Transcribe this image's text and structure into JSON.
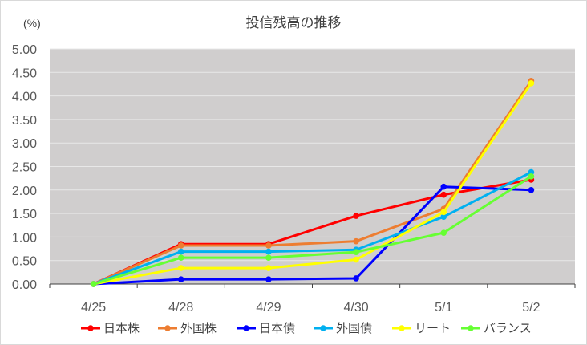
{
  "chart_data": {
    "type": "line",
    "title": "投信残高の推移",
    "ylabel": "(%)",
    "xlabel": "",
    "categories": [
      "4/25",
      "4/28",
      "4/29",
      "4/30",
      "5/1",
      "5/2"
    ],
    "ylim": [
      0,
      5
    ],
    "yticks": [
      "0.00",
      "0.50",
      "1.00",
      "1.50",
      "2.00",
      "2.50",
      "3.00",
      "3.50",
      "4.00",
      "4.50",
      "5.00"
    ],
    "grid": true,
    "legend_position": "bottom",
    "plot_background": "#d0cece",
    "series": [
      {
        "name": "日本株",
        "color": "#ff0000",
        "values": [
          0,
          0.85,
          0.85,
          1.45,
          1.9,
          2.22
        ]
      },
      {
        "name": "外国株",
        "color": "#ed7d31",
        "values": [
          0,
          0.82,
          0.82,
          0.91,
          1.6,
          4.32
        ]
      },
      {
        "name": "日本債",
        "color": "#0000ff",
        "values": [
          0,
          0.1,
          0.1,
          0.12,
          2.07,
          2.0
        ]
      },
      {
        "name": "外国債",
        "color": "#00b0f0",
        "values": [
          0,
          0.69,
          0.69,
          0.73,
          1.43,
          2.38
        ]
      },
      {
        "name": "リート",
        "color": "#ffff00",
        "values": [
          0,
          0.34,
          0.34,
          0.52,
          1.53,
          4.27
        ]
      },
      {
        "name": "バランス",
        "color": "#66ff33",
        "values": [
          0,
          0.56,
          0.56,
          0.68,
          1.09,
          2.29
        ]
      }
    ]
  }
}
